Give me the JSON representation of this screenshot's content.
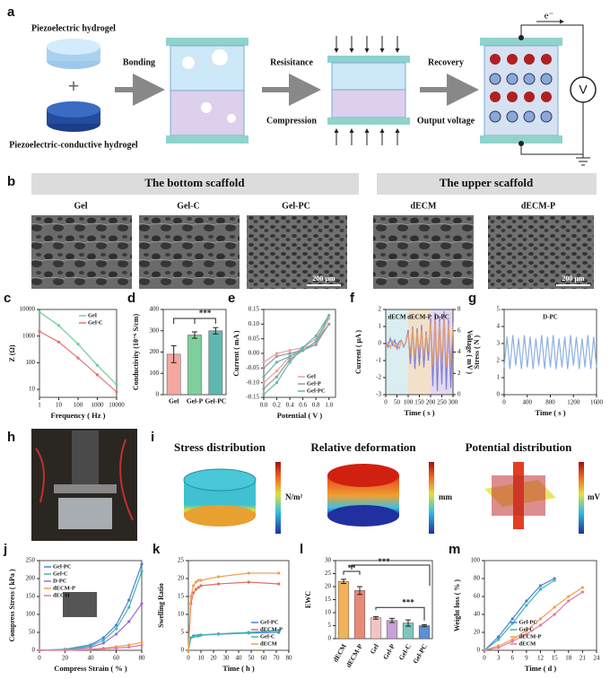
{
  "schematic": {
    "label": "a",
    "top_gel": "Piezoelectric hydrogel",
    "bottom_gel": "Piezoelectric-conductive hydrogel",
    "plus": "+",
    "step1": "Bonding",
    "step2a": "Resisitance",
    "step2b": "Compression",
    "step3a": "Recovery",
    "step3b": "Output voltage",
    "electron": "e⁻",
    "meter": "V"
  },
  "sem": {
    "label": "b",
    "bottom_title": "The bottom scaffold",
    "upper_title": "The upper scaffold",
    "images": [
      "Gel",
      "Gel-C",
      "Gel-PC",
      "dECM",
      "dECM-P"
    ],
    "scale_bar": "200 μm"
  },
  "setup": {
    "label": "h"
  },
  "simulation": {
    "label": "i",
    "panels": [
      {
        "title": "Stress distribution",
        "unit": "N/m²"
      },
      {
        "title": "Relative deformation",
        "unit": "mm"
      },
      {
        "title": "Potential distribution",
        "unit": "mV"
      }
    ]
  },
  "chart_data": [
    {
      "type": "line",
      "label": "c",
      "x_label": "Frequency ( Hz )",
      "y_label": "Z (Ω)",
      "xscale": "log",
      "yscale": "log",
      "xlim": [
        1,
        10000
      ],
      "ylim": [
        5,
        10000
      ],
      "xticks": [
        1,
        10,
        100,
        1000,
        10000
      ],
      "yticks": [
        10,
        100,
        1000,
        10000
      ],
      "x": [
        1,
        10,
        100,
        1000,
        10000
      ],
      "legend": "upper right",
      "series": [
        {
          "name": "Gel",
          "color": "#6fcf97",
          "values": [
            8000,
            2500,
            500,
            80,
            15
          ]
        },
        {
          "name": "Gel-C",
          "color": "#e57373",
          "values": [
            1500,
            600,
            150,
            35,
            8
          ]
        }
      ]
    },
    {
      "type": "bar",
      "label": "d",
      "y_label": "Conductivity (10⁻⁶ S/cm)",
      "categories": [
        "Gel",
        "Gel-P",
        "Gel-PC"
      ],
      "values": [
        190,
        280,
        300
      ],
      "errors": [
        40,
        15,
        15
      ],
      "colors": [
        "#f4a6a0",
        "#7ecf9c",
        "#5fb8b0"
      ],
      "ylim": [
        0,
        400
      ],
      "yticks": [
        0,
        100,
        200,
        300,
        400
      ],
      "annotations": [
        "***"
      ]
    },
    {
      "type": "line",
      "label": "e",
      "x_label": "Potential ( V )",
      "y_label": "Current ( mA )",
      "xlim": [
        0,
        1.1
      ],
      "ylim": [
        -0.15,
        0.15
      ],
      "xticks": [
        {
          "value": 0,
          "label": "0.0"
        },
        0.2,
        0.4,
        0.6,
        0.8,
        {
          "value": 1,
          "label": "1.0"
        }
      ],
      "yticks": [
        {
          "value": 0.15,
          "label": "0.15"
        },
        {
          "value": 0.1,
          "label": "0.10"
        },
        0.05,
        {
          "value": 0,
          "label": "0.00"
        },
        -0.05,
        {
          "value": -0.1,
          "label": "-0.10"
        },
        -0.15
      ],
      "x": [
        0,
        0.2,
        0.4,
        0.6,
        0.8,
        1.0,
        0.8,
        0.6,
        0.4,
        0.2,
        0
      ],
      "legend": "lower right",
      "series": [
        {
          "name": "Gel",
          "color": "#e8a0a0",
          "values": [
            -0.03,
            0,
            0.01,
            0.02,
            0.03,
            0.12,
            0.05,
            0.02,
            -0.01,
            -0.06,
            -0.1
          ]
        },
        {
          "name": "Gel-P",
          "color": "#999999",
          "values": [
            -0.05,
            -0.01,
            0,
            0.01,
            0.03,
            0.1,
            0.04,
            0.01,
            -0.02,
            -0.08,
            -0.12
          ]
        },
        {
          "name": "Gel-PC",
          "color": "#5fb8b0",
          "values": [
            -0.08,
            -0.03,
            -0.01,
            0.01,
            0.04,
            0.13,
            0.06,
            0.02,
            -0.03,
            -0.1,
            -0.14
          ]
        }
      ]
    },
    {
      "type": "line",
      "label": "f",
      "x_label": "Time ( s )",
      "y_label": "Current ( μA )",
      "y2_label": "Voltage ( mV )",
      "xlim": [
        0,
        300
      ],
      "ylim": [
        -3,
        2
      ],
      "y2lim": [
        0,
        8
      ],
      "xticks": [
        0,
        50,
        100,
        150,
        200,
        250,
        300
      ],
      "yticks": [
        -3,
        -2,
        -1,
        0,
        1,
        2
      ],
      "y2ticks": [
        0,
        2,
        4,
        6,
        8
      ],
      "annotations": [
        "dECM",
        "dECM-P",
        "D-PC"
      ],
      "x": [
        0,
        10,
        20,
        30,
        40,
        50,
        60,
        70,
        80,
        90,
        100,
        110,
        120,
        130,
        140,
        150,
        160,
        170,
        180,
        190,
        200,
        210,
        220,
        230,
        240,
        250,
        260,
        270,
        280,
        290,
        300
      ],
      "series": [
        {
          "color": "#7f7fd0",
          "values": [
            0.1,
            -0.2,
            0.3,
            -0.1,
            0.2,
            -0.3,
            0.1,
            0.2,
            -0.2,
            0.1,
            0.8,
            -1.2,
            1.0,
            -1.5,
            0.9,
            -1.3,
            1.1,
            -1.4,
            0.7,
            -1.0,
            1.5,
            -2.5,
            1.8,
            -2.8,
            1.6,
            -2.4,
            1.9,
            -2.7,
            1.4,
            -2.6,
            1.2
          ]
        },
        {
          "color": "#e0a070",
          "axis": "y2",
          "values": [
            4.6,
            4.9,
            4.4,
            5.0,
            4.5,
            4.8,
            4.3,
            5.1,
            4.6,
            4.9,
            5.8,
            3.9,
            6.2,
            3.6,
            5.9,
            4.0,
            6.1,
            3.7,
            5.7,
            4.1,
            6.8,
            2.8,
            7.1,
            2.5,
            6.9,
            3.0,
            7.2,
            2.6,
            6.6,
            2.9,
            6.4
          ]
        }
      ]
    },
    {
      "type": "line",
      "label": "g",
      "x_label": "Time ( s )",
      "y_label": "Stress ( N )",
      "xlim": [
        0,
        1600
      ],
      "ylim": [
        0,
        5
      ],
      "xticks": [
        0,
        400,
        800,
        1200,
        1600
      ],
      "yticks": [
        0,
        1,
        2,
        3,
        4,
        5
      ],
      "annotations": [
        "D-PC"
      ],
      "x": [
        0,
        50,
        100,
        150,
        200,
        250,
        300,
        350,
        400,
        450,
        500,
        550,
        600,
        650,
        700,
        750,
        800,
        850,
        900,
        950,
        1000,
        1050,
        1100,
        1150,
        1200,
        1250,
        1300,
        1350,
        1400,
        1450,
        1500,
        1550,
        1600
      ],
      "series": [
        {
          "color": "#8fb0e0",
          "values": [
            1.6,
            3.4,
            1.5,
            3.5,
            1.7,
            3.3,
            1.5,
            3.5,
            1.6,
            3.4,
            1.5,
            3.3,
            1.7,
            3.5,
            1.5,
            3.4,
            1.6,
            3.5,
            1.5,
            3.3,
            1.6,
            3.4,
            1.5,
            3.5,
            1.7,
            3.4,
            1.5,
            3.3,
            1.6,
            3.5,
            1.5,
            3.4,
            1.6
          ]
        }
      ]
    },
    {
      "type": "line",
      "label": "j",
      "x_label": "Compress Strain ( % )",
      "y_label": "Compress Stress ( kPa )",
      "xlim": [
        0,
        80
      ],
      "ylim": [
        0,
        250
      ],
      "xticks": [
        0,
        20,
        40,
        60,
        80
      ],
      "yticks": [
        0,
        50,
        100,
        150,
        200,
        250
      ],
      "x": [
        0,
        20,
        40,
        50,
        60,
        70,
        80
      ],
      "legend": "upper left",
      "series": [
        {
          "name": "Gel-PC",
          "color": "#4a7fd4",
          "values": [
            0,
            3,
            15,
            35,
            70,
            140,
            240
          ]
        },
        {
          "name": "Gel-C",
          "color": "#3fb8b0",
          "values": [
            0,
            2,
            12,
            28,
            60,
            120,
            220
          ]
        },
        {
          "name": "D-PC",
          "color": "#9b6bd0",
          "values": [
            0,
            1,
            8,
            20,
            45,
            80,
            130
          ]
        },
        {
          "name": "dECM-P",
          "color": "#f0a050",
          "values": [
            0,
            1,
            3,
            6,
            10,
            15,
            22
          ]
        },
        {
          "name": "dECM",
          "color": "#e07aa0",
          "values": [
            0,
            0,
            2,
            4,
            6,
            9,
            14
          ]
        }
      ]
    },
    {
      "type": "line",
      "label": "k",
      "x_label": "Time ( h )",
      "y_label": "Swelling Ratio",
      "xlim": [
        0,
        80
      ],
      "ylim": [
        0,
        25
      ],
      "xticks": [
        0,
        10,
        20,
        30,
        40,
        50,
        60,
        70,
        80
      ],
      "yticks": [
        0,
        5,
        10,
        15,
        20,
        25
      ],
      "x": [
        0,
        2,
        4,
        6,
        8,
        10,
        24,
        48,
        72
      ],
      "legend": "lower right",
      "series": [
        {
          "name": "Gel-PC",
          "color": "#4a7fd4",
          "values": [
            0,
            3.5,
            4,
            4,
            4,
            4.2,
            4.5,
            4.8,
            5
          ]
        },
        {
          "name": "dECM-P",
          "color": "#e07060",
          "values": [
            0,
            13,
            16,
            17,
            17.5,
            18,
            18.5,
            19,
            18.5
          ]
        },
        {
          "name": "Gel-C",
          "color": "#3fb8b0",
          "values": [
            0,
            3.5,
            3.8,
            4,
            4.2,
            4.3,
            4.6,
            5,
            5.5
          ]
        },
        {
          "name": "dECM",
          "color": "#f0a050",
          "values": [
            0,
            15,
            18,
            19,
            19.5,
            19.5,
            20.5,
            21.5,
            21.5
          ]
        }
      ]
    },
    {
      "type": "bar",
      "label": "l",
      "y_label": "EWC",
      "categories": [
        "dECM",
        "dECM-P",
        "Gel",
        "Gel-P",
        "Gel-C",
        "Gel-PC"
      ],
      "values": [
        22,
        18.5,
        8,
        7,
        6,
        5
      ],
      "errors": [
        0.8,
        1.5,
        0.5,
        0.8,
        1.2,
        0.4
      ],
      "colors": [
        "#f2b25a",
        "#e88a78",
        "#f4c4c4",
        "#c9a0d8",
        "#7cc7c0",
        "#5d8fd4"
      ],
      "ylim": [
        0,
        30
      ],
      "yticks": [
        0,
        5,
        10,
        15,
        20,
        25,
        30
      ],
      "annotations": [
        "**",
        "***",
        "***"
      ]
    },
    {
      "type": "line",
      "label": "m",
      "x_label": "Time ( d )",
      "y_label": "Weight loss ( % )",
      "xlim": [
        0,
        24
      ],
      "ylim": [
        0,
        100
      ],
      "xticks": [
        0,
        3,
        6,
        9,
        12,
        15,
        18,
        21,
        24
      ],
      "yticks": [
        0,
        20,
        40,
        60,
        80,
        100
      ],
      "x": [
        0,
        3,
        6,
        9,
        12,
        15,
        18,
        21
      ],
      "legend": "lower center",
      "series": [
        {
          "name": "Gel-PC",
          "color": "#4a7fd4",
          "values": [
            0,
            15,
            35,
            55,
            72,
            80,
            null,
            null
          ]
        },
        {
          "name": "Gel-C",
          "color": "#3fb8b0",
          "values": [
            0,
            12,
            30,
            50,
            68,
            78,
            null,
            null
          ]
        },
        {
          "name": "dECM-P",
          "color": "#f0a050",
          "values": [
            0,
            5,
            12,
            22,
            35,
            48,
            60,
            70
          ]
        },
        {
          "name": "dECM",
          "color": "#e07aa0",
          "values": [
            0,
            3,
            10,
            18,
            28,
            40,
            55,
            65
          ]
        }
      ]
    }
  ]
}
